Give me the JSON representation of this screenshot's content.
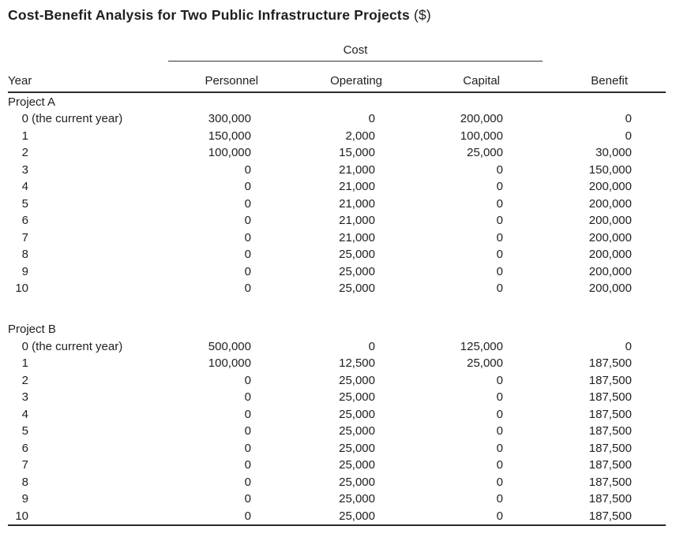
{
  "title": {
    "main": "Cost-Benefit Analysis for Two Public Infrastructure Projects",
    "unit": "($)"
  },
  "table": {
    "cost_spanner": "Cost",
    "columns": {
      "year": "Year",
      "personnel": "Personnel",
      "operating": "Operating",
      "capital": "Capital",
      "benefit": "Benefit"
    },
    "sections": [
      {
        "label": "Project A",
        "rows": [
          {
            "year": "0",
            "note": "(the current year)",
            "personnel": "300,000",
            "operating": "0",
            "capital": "200,000",
            "benefit": "0"
          },
          {
            "year": "1",
            "note": "",
            "personnel": "150,000",
            "operating": "2,000",
            "capital": "100,000",
            "benefit": "0"
          },
          {
            "year": "2",
            "note": "",
            "personnel": "100,000",
            "operating": "15,000",
            "capital": "25,000",
            "benefit": "30,000"
          },
          {
            "year": "3",
            "note": "",
            "personnel": "0",
            "operating": "21,000",
            "capital": "0",
            "benefit": "150,000"
          },
          {
            "year": "4",
            "note": "",
            "personnel": "0",
            "operating": "21,000",
            "capital": "0",
            "benefit": "200,000"
          },
          {
            "year": "5",
            "note": "",
            "personnel": "0",
            "operating": "21,000",
            "capital": "0",
            "benefit": "200,000"
          },
          {
            "year": "6",
            "note": "",
            "personnel": "0",
            "operating": "21,000",
            "capital": "0",
            "benefit": "200,000"
          },
          {
            "year": "7",
            "note": "",
            "personnel": "0",
            "operating": "21,000",
            "capital": "0",
            "benefit": "200,000"
          },
          {
            "year": "8",
            "note": "",
            "personnel": "0",
            "operating": "25,000",
            "capital": "0",
            "benefit": "200,000"
          },
          {
            "year": "9",
            "note": "",
            "personnel": "0",
            "operating": "25,000",
            "capital": "0",
            "benefit": "200,000"
          },
          {
            "year": "10",
            "note": "",
            "personnel": "0",
            "operating": "25,000",
            "capital": "0",
            "benefit": "200,000"
          }
        ]
      },
      {
        "label": "Project B",
        "rows": [
          {
            "year": "0",
            "note": "(the current year)",
            "personnel": "500,000",
            "operating": "0",
            "capital": "125,000",
            "benefit": "0"
          },
          {
            "year": "1",
            "note": "",
            "personnel": "100,000",
            "operating": "12,500",
            "capital": "25,000",
            "benefit": "187,500"
          },
          {
            "year": "2",
            "note": "",
            "personnel": "0",
            "operating": "25,000",
            "capital": "0",
            "benefit": "187,500"
          },
          {
            "year": "3",
            "note": "",
            "personnel": "0",
            "operating": "25,000",
            "capital": "0",
            "benefit": "187,500"
          },
          {
            "year": "4",
            "note": "",
            "personnel": "0",
            "operating": "25,000",
            "capital": "0",
            "benefit": "187,500"
          },
          {
            "year": "5",
            "note": "",
            "personnel": "0",
            "operating": "25,000",
            "capital": "0",
            "benefit": "187,500"
          },
          {
            "year": "6",
            "note": "",
            "personnel": "0",
            "operating": "25,000",
            "capital": "0",
            "benefit": "187,500"
          },
          {
            "year": "7",
            "note": "",
            "personnel": "0",
            "operating": "25,000",
            "capital": "0",
            "benefit": "187,500"
          },
          {
            "year": "8",
            "note": "",
            "personnel": "0",
            "operating": "25,000",
            "capital": "0",
            "benefit": "187,500"
          },
          {
            "year": "9",
            "note": "",
            "personnel": "0",
            "operating": "25,000",
            "capital": "0",
            "benefit": "187,500"
          },
          {
            "year": "10",
            "note": "",
            "personnel": "0",
            "operating": "25,000",
            "capital": "0",
            "benefit": "187,500"
          }
        ]
      }
    ],
    "colors": {
      "text": "#1f1f1f",
      "rule": "#2a2a2a",
      "background": "#ffffff"
    }
  }
}
